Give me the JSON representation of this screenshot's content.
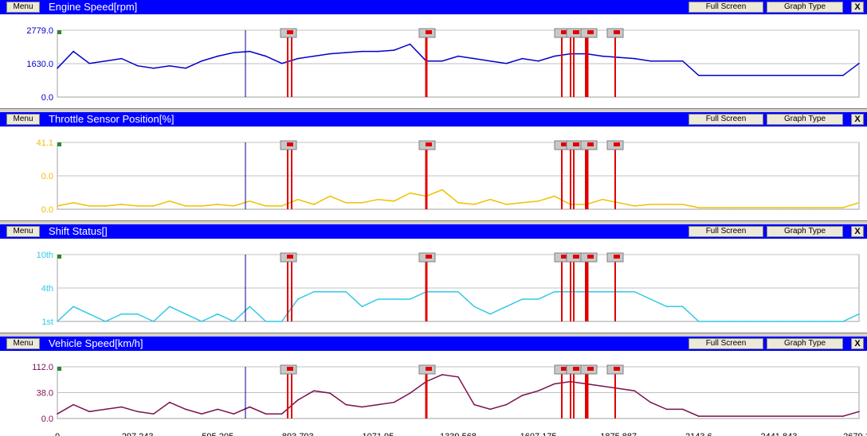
{
  "window": {
    "menu_label": "Menu",
    "fullscreen_label": "Full Screen",
    "graphtype_label": "Graph Type",
    "close_label": "X"
  },
  "colors": {
    "titlebar": "#0000ff",
    "marker_red": "#e00000",
    "cursor_line": "#00008b",
    "grid": "#c0c0c0"
  },
  "chart_data": [
    {
      "type": "line",
      "title": "Engine Speed[rpm]",
      "color": "#0000cc",
      "ylim": [
        0,
        2779
      ],
      "yticks": [
        "2779.0",
        "1630.0",
        "0.0"
      ],
      "x": [
        0,
        20,
        40,
        60,
        80,
        100,
        120,
        140,
        160,
        180,
        200,
        220,
        240,
        260,
        280,
        300,
        320,
        340,
        360,
        380,
        400,
        420,
        440,
        460,
        480,
        500,
        520,
        540,
        560,
        580,
        600,
        620,
        640,
        660,
        680,
        700,
        720,
        740,
        760,
        780,
        800,
        820,
        840,
        860,
        880,
        900,
        920,
        940,
        960,
        980,
        1000
      ],
      "series": [
        {
          "values": [
            1200,
            1900,
            1400,
            1500,
            1600,
            1300,
            1200,
            1300,
            1200,
            1500,
            1700,
            1850,
            1900,
            1700,
            1400,
            1600,
            1700,
            1800,
            1850,
            1900,
            1900,
            1950,
            2200,
            1500,
            1500,
            1700,
            1600,
            1500,
            1400,
            1600,
            1500,
            1700,
            1800,
            1800,
            1700,
            1650,
            1600,
            1500,
            1500,
            1500,
            900,
            900,
            900,
            900,
            900,
            900,
            900,
            900,
            900,
            900,
            1400
          ]
        }
      ],
      "grid": true
    },
    {
      "type": "line",
      "title": "Throttle Sensor Position[%]",
      "color": "#f0c000",
      "ylim": [
        0,
        41.1
      ],
      "yticks": [
        "41.1",
        "0.0",
        "0.0"
      ],
      "x": [
        0,
        20,
        40,
        60,
        80,
        100,
        120,
        140,
        160,
        180,
        200,
        220,
        240,
        260,
        280,
        300,
        320,
        340,
        360,
        380,
        400,
        420,
        440,
        460,
        480,
        500,
        520,
        540,
        560,
        580,
        600,
        620,
        640,
        660,
        680,
        700,
        720,
        740,
        760,
        780,
        800,
        820,
        840,
        860,
        880,
        900,
        920,
        940,
        960,
        980,
        1000
      ],
      "series": [
        {
          "values": [
            2,
            4,
            2,
            2,
            3,
            2,
            2,
            5,
            2,
            2,
            3,
            2,
            5,
            2,
            2,
            6,
            3,
            8,
            4,
            4,
            6,
            5,
            10,
            8,
            12,
            4,
            3,
            6,
            3,
            4,
            5,
            8,
            3,
            3,
            6,
            4,
            2,
            3,
            3,
            3,
            1,
            1,
            1,
            1,
            1,
            1,
            1,
            1,
            1,
            1,
            4
          ]
        }
      ],
      "grid": true
    },
    {
      "type": "line",
      "title": "Shift Status[]",
      "color": "#33c8e8",
      "ylim": [
        1,
        10
      ],
      "yticks": [
        "10th",
        "4th",
        "1st"
      ],
      "x": [
        0,
        20,
        40,
        60,
        80,
        100,
        120,
        140,
        160,
        180,
        200,
        220,
        240,
        260,
        280,
        300,
        320,
        340,
        360,
        380,
        400,
        420,
        440,
        460,
        480,
        500,
        520,
        540,
        560,
        580,
        600,
        620,
        640,
        660,
        680,
        700,
        720,
        740,
        760,
        780,
        800,
        820,
        840,
        860,
        880,
        900,
        920,
        940,
        960,
        980,
        1000
      ],
      "series": [
        {
          "values": [
            1,
            3,
            2,
            1,
            2,
            2,
            1,
            3,
            2,
            1,
            2,
            1,
            3,
            1,
            1,
            4,
            5,
            5,
            5,
            3,
            4,
            4,
            4,
            5,
            5,
            5,
            3,
            2,
            3,
            4,
            4,
            5,
            5,
            5,
            5,
            5,
            5,
            4,
            3,
            3,
            1,
            1,
            1,
            1,
            1,
            1,
            1,
            1,
            1,
            1,
            2
          ]
        }
      ],
      "grid": true
    },
    {
      "type": "line",
      "title": "Vehicle Speed[km/h]",
      "color": "#7a1050",
      "ylim": [
        0,
        112
      ],
      "yticks": [
        "112.0",
        "38.0",
        "0.0"
      ],
      "x": [
        0,
        20,
        40,
        60,
        80,
        100,
        120,
        140,
        160,
        180,
        200,
        220,
        240,
        260,
        280,
        300,
        320,
        340,
        360,
        380,
        400,
        420,
        440,
        460,
        480,
        500,
        520,
        540,
        560,
        580,
        600,
        620,
        640,
        660,
        680,
        700,
        720,
        740,
        760,
        780,
        800,
        820,
        840,
        860,
        880,
        900,
        920,
        940,
        960,
        980,
        1000
      ],
      "series": [
        {
          "values": [
            10,
            30,
            15,
            20,
            25,
            15,
            10,
            35,
            20,
            10,
            20,
            10,
            25,
            10,
            10,
            40,
            60,
            55,
            30,
            25,
            30,
            35,
            55,
            80,
            95,
            90,
            30,
            20,
            30,
            50,
            60,
            75,
            80,
            75,
            70,
            65,
            60,
            35,
            20,
            20,
            5,
            5,
            5,
            5,
            5,
            5,
            5,
            5,
            5,
            5,
            15
          ]
        }
      ],
      "grid": true
    }
  ],
  "x_axis_ticks": [
    "0",
    "297.243",
    "595.205",
    "893.793",
    "1071.95",
    "1339.568",
    "1607.175",
    "1875.887",
    "2143.6",
    "2441.843",
    "2679.16"
  ]
}
